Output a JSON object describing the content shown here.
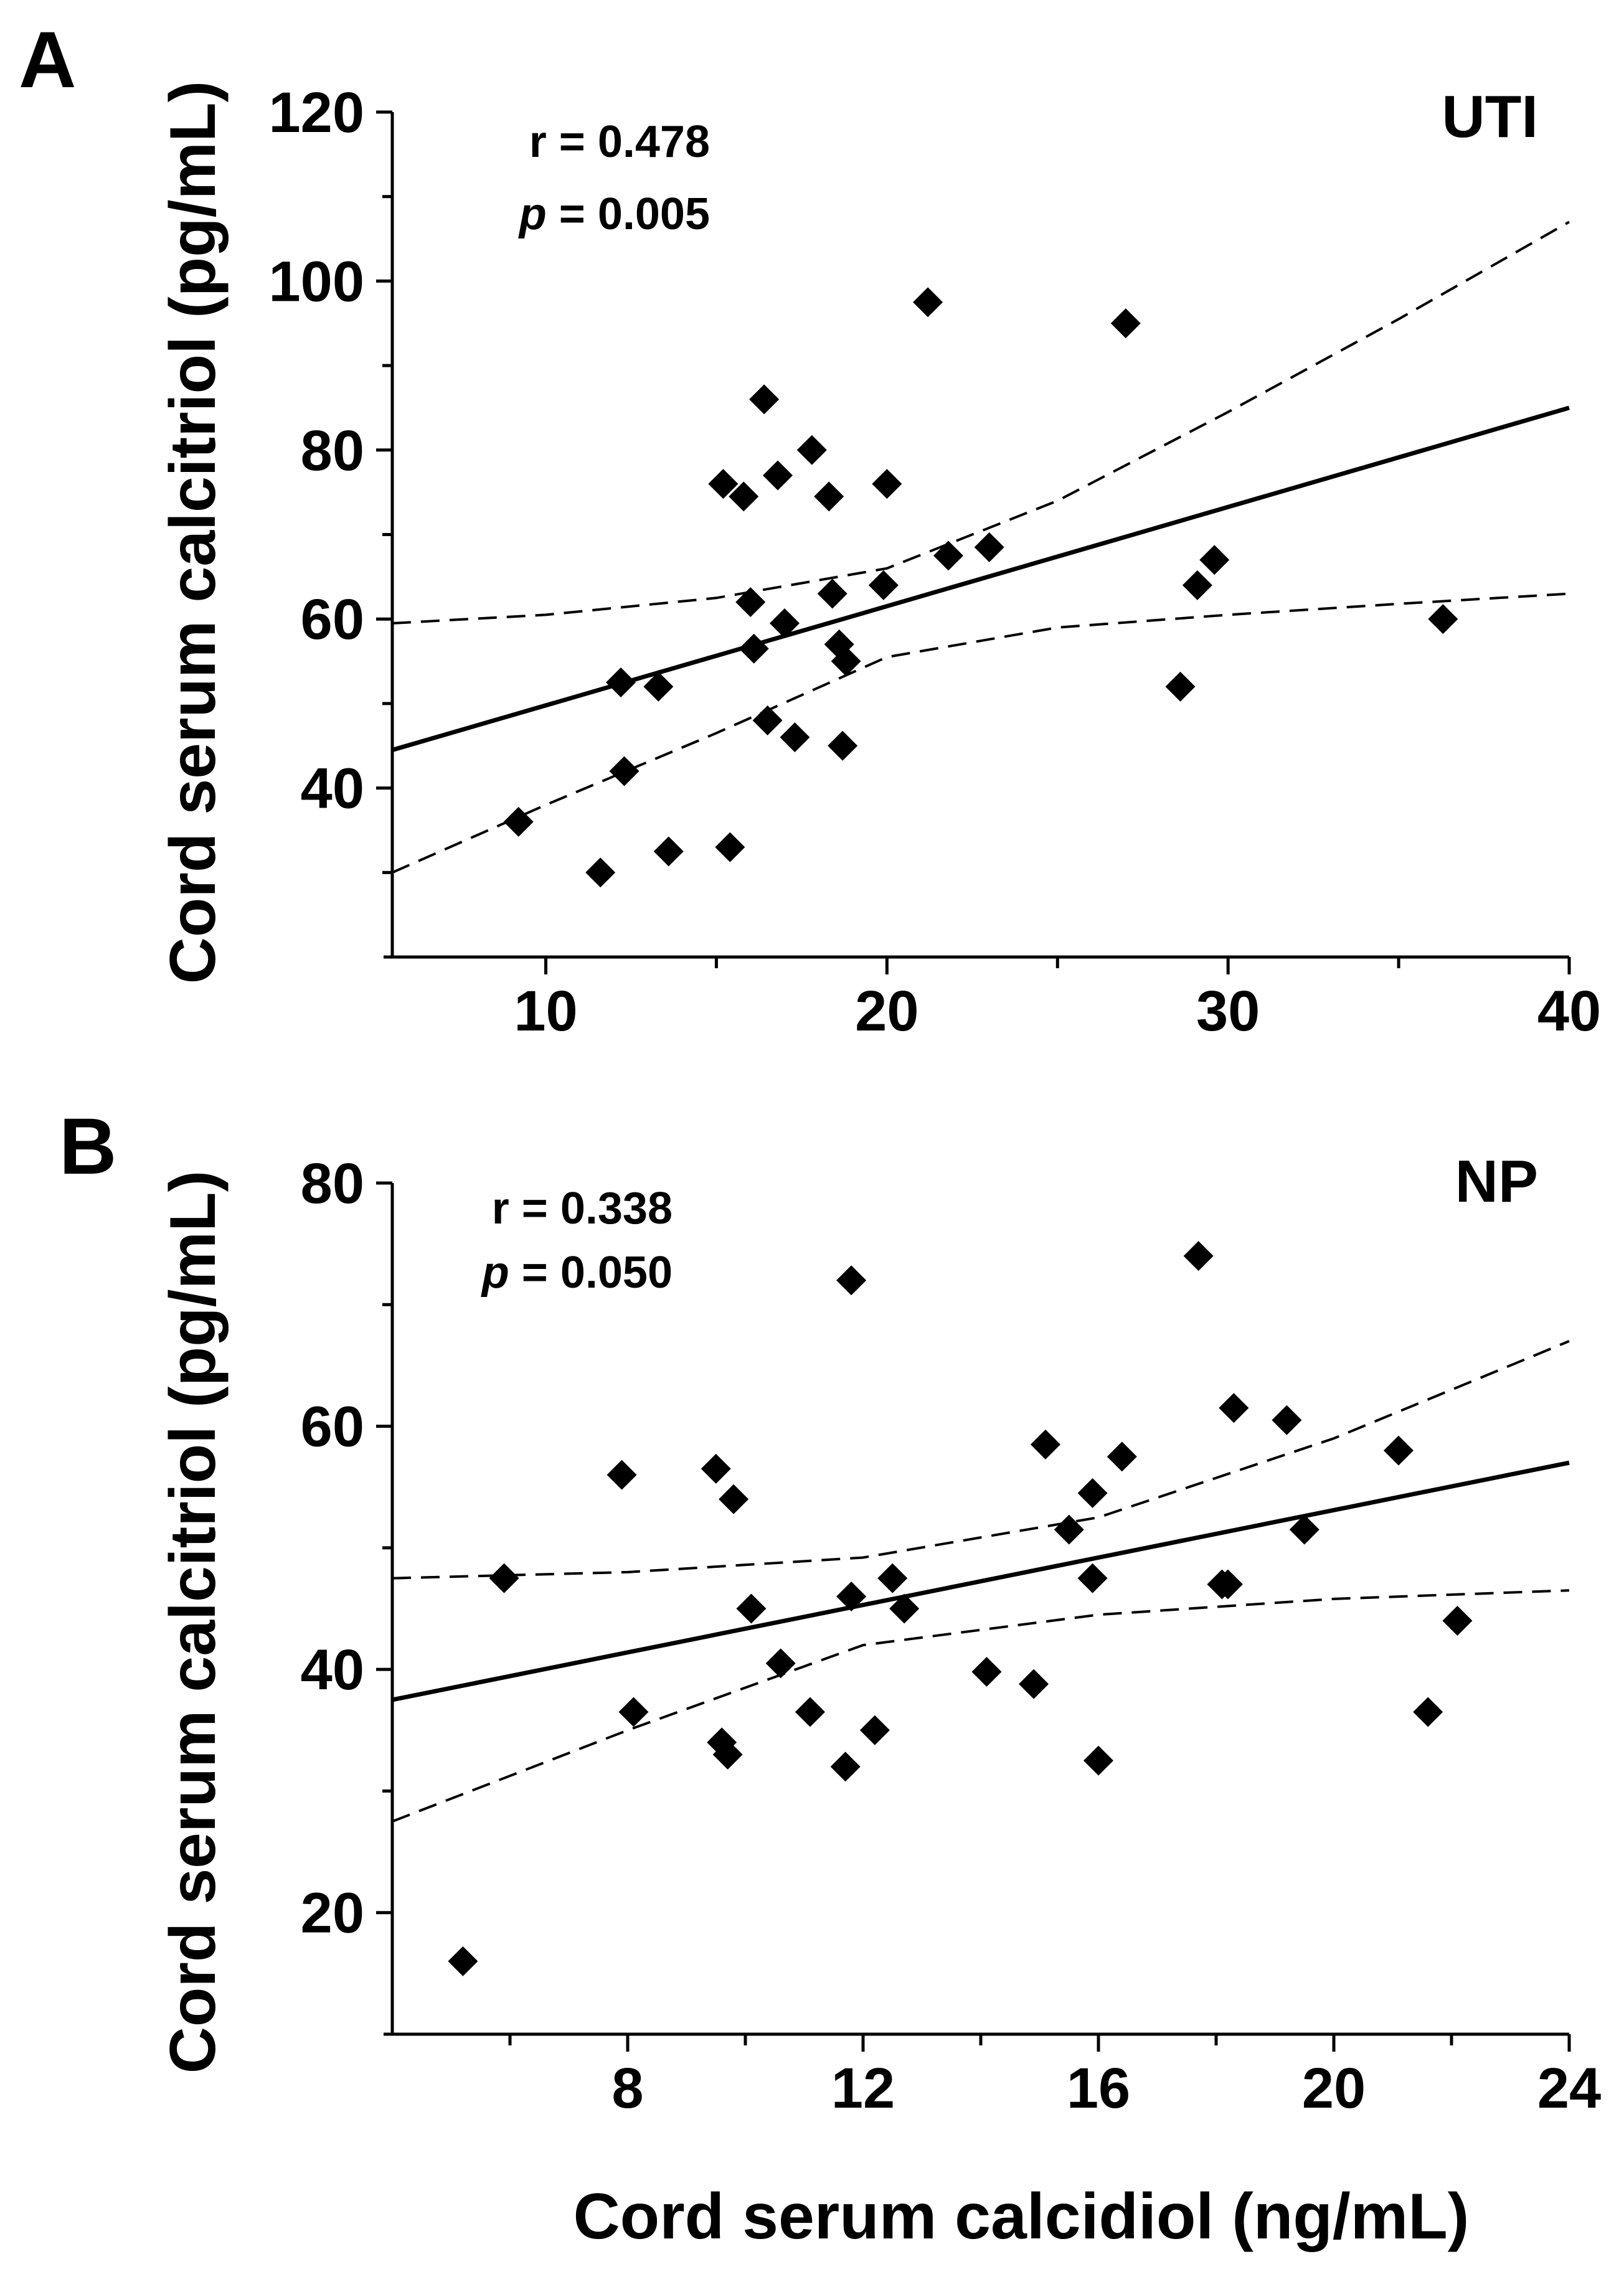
{
  "chart_data": [
    {
      "type": "scatter",
      "panel_label": "A",
      "group_label": "UTI",
      "ylabel": "Cord serum calcitriol (pg/mL)",
      "xlabel": "",
      "xlim": [
        5.5,
        40
      ],
      "ylim": [
        20,
        120
      ],
      "xticks": [
        10,
        20,
        30,
        40
      ],
      "yticks": [
        40,
        60,
        80,
        100,
        120
      ],
      "xminor": [
        15,
        25,
        35
      ],
      "stats": {
        "r_label": "r = ",
        "r_value": "0.478",
        "p_label": "p",
        "p_rest": " = 0.005"
      },
      "points": [
        [
          9.2,
          36
        ],
        [
          11.6,
          30
        ],
        [
          12.2,
          52.5
        ],
        [
          12.3,
          42
        ],
        [
          13.3,
          52
        ],
        [
          13.6,
          32.5
        ],
        [
          15.2,
          76
        ],
        [
          15.4,
          33
        ],
        [
          15.8,
          74.5
        ],
        [
          16.0,
          62
        ],
        [
          16.1,
          56.5
        ],
        [
          16.4,
          86
        ],
        [
          16.5,
          48
        ],
        [
          16.8,
          77
        ],
        [
          17.0,
          59.5
        ],
        [
          17.3,
          46
        ],
        [
          17.8,
          80
        ],
        [
          18.3,
          74.5
        ],
        [
          18.4,
          63
        ],
        [
          18.6,
          57
        ],
        [
          18.7,
          45
        ],
        [
          18.8,
          55
        ],
        [
          19.9,
          64
        ],
        [
          20.0,
          76
        ],
        [
          21.2,
          97.5
        ],
        [
          21.8,
          67.5
        ],
        [
          23.0,
          68.5
        ],
        [
          27.0,
          95
        ],
        [
          28.6,
          52
        ],
        [
          29.1,
          64
        ],
        [
          29.6,
          67
        ],
        [
          36.3,
          60
        ]
      ],
      "regression": {
        "x": [
          5.5,
          40
        ],
        "y": [
          44.5,
          85
        ]
      },
      "ci_upper": [
        [
          5.5,
          59.5
        ],
        [
          10,
          60.5
        ],
        [
          15,
          62.5
        ],
        [
          20,
          66
        ],
        [
          25,
          74
        ],
        [
          30,
          84.5
        ],
        [
          35,
          95.5
        ],
        [
          40,
          107
        ]
      ],
      "ci_lower": [
        [
          5.5,
          30
        ],
        [
          10,
          38
        ],
        [
          15,
          46.5
        ],
        [
          20,
          55.5
        ],
        [
          25,
          59
        ],
        [
          30,
          60.5
        ],
        [
          35,
          61.8
        ],
        [
          40,
          63
        ]
      ]
    },
    {
      "type": "scatter",
      "panel_label": "B",
      "group_label": "NP",
      "ylabel": "Cord serum calcitriol (pg/mL)",
      "xlabel": "Cord serum calcidiol (ng/mL)",
      "xlim": [
        4,
        24
      ],
      "ylim": [
        10,
        80
      ],
      "xticks": [
        8,
        12,
        16,
        20,
        24
      ],
      "yticks": [
        20,
        40,
        60,
        80
      ],
      "xminor": [
        6,
        10,
        14,
        18,
        22
      ],
      "stats": {
        "r_label": "r = ",
        "r_value": "0.338",
        "p_label": "p",
        "p_rest": " = 0.050"
      },
      "points": [
        [
          5.2,
          16
        ],
        [
          5.9,
          47.5
        ],
        [
          7.9,
          56
        ],
        [
          8.1,
          36.5
        ],
        [
          9.5,
          56.5
        ],
        [
          9.6,
          34
        ],
        [
          9.7,
          33
        ],
        [
          9.8,
          54
        ],
        [
          10.1,
          45
        ],
        [
          10.6,
          40.5
        ],
        [
          11.1,
          36.5
        ],
        [
          11.7,
          32
        ],
        [
          11.8,
          72
        ],
        [
          11.8,
          46
        ],
        [
          12.2,
          35
        ],
        [
          12.5,
          47.5
        ],
        [
          12.7,
          45
        ],
        [
          14.1,
          39.8
        ],
        [
          14.9,
          38.8
        ],
        [
          15.1,
          58.5
        ],
        [
          15.5,
          51.5
        ],
        [
          15.9,
          54.5
        ],
        [
          15.9,
          47.5
        ],
        [
          16.0,
          32.5
        ],
        [
          16.4,
          57.5
        ],
        [
          17.7,
          74
        ],
        [
          18.1,
          47
        ],
        [
          18.2,
          47
        ],
        [
          18.3,
          61.5
        ],
        [
          19.2,
          60.5
        ],
        [
          19.5,
          51.5
        ],
        [
          21.1,
          58
        ],
        [
          21.6,
          36.5
        ],
        [
          22.1,
          44
        ]
      ],
      "regression": {
        "x": [
          4,
          24
        ],
        "y": [
          37.5,
          57
        ]
      },
      "ci_upper": [
        [
          4,
          47.5
        ],
        [
          8,
          48
        ],
        [
          12,
          49.2
        ],
        [
          16,
          52.5
        ],
        [
          20,
          59
        ],
        [
          24,
          67
        ]
      ],
      "ci_lower": [
        [
          4,
          27.5
        ],
        [
          8,
          35
        ],
        [
          12,
          42
        ],
        [
          16,
          44.5
        ],
        [
          20,
          45.8
        ],
        [
          24,
          46.5
        ]
      ]
    }
  ]
}
